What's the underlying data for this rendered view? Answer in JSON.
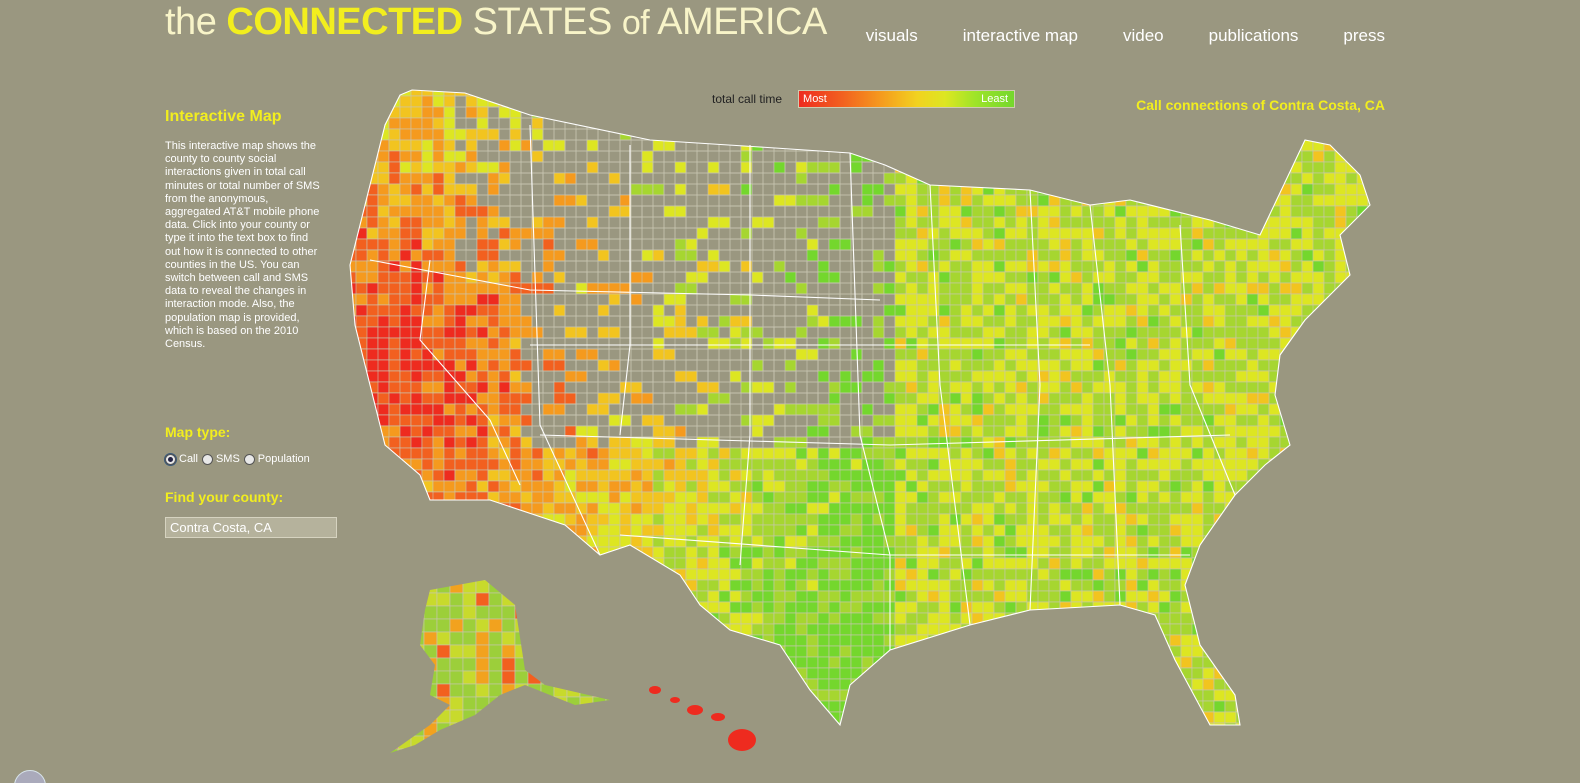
{
  "logo": {
    "the": "the",
    "connected": "CONNECTED",
    "states": "STATES",
    "of": "of",
    "america": "AMERICA"
  },
  "nav": {
    "items": [
      "visuals",
      "interactive map",
      "video",
      "publications",
      "press"
    ]
  },
  "sidebar": {
    "title": "Interactive Map",
    "description": "This interactive map shows the county to county social interactions given in total call minutes or total number of SMS from the anonymous, aggregated AT&T mobile phone data. Click into your county or type it into the text box to find out how it is connected to other counties in the US. You can switch between call and SMS data to reveal the changes in interaction mode. Also, the population map is provided, which is based on the 2010 Census.",
    "map_type_label": "Map type:",
    "options": [
      {
        "label": "Call",
        "checked": true
      },
      {
        "label": "SMS",
        "checked": false
      },
      {
        "label": "Population",
        "checked": false
      }
    ],
    "find_label": "Find your county:",
    "county_value": "Contra Costa, CA"
  },
  "legend": {
    "label": "total call time",
    "most": "Most",
    "least": "Least"
  },
  "map_title": "Call connections of Contra Costa, CA",
  "colors": {
    "most": "#ee2b1f",
    "high": "#f2601f",
    "mid": "#f59a1e",
    "low": "#dde622",
    "least": "#74d72d",
    "background": "#9a9780",
    "accent": "#f2ee1e"
  }
}
